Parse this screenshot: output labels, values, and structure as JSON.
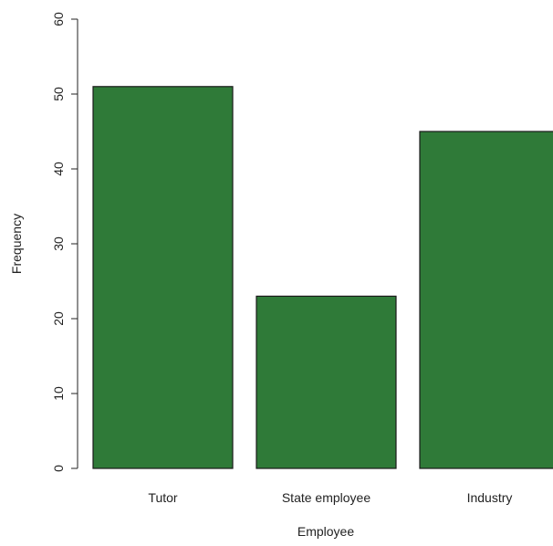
{
  "chart_data": {
    "type": "bar",
    "categories": [
      "Tutor",
      "State employee",
      "Industry"
    ],
    "values": [
      51,
      23,
      45
    ],
    "xlabel": "Employee",
    "ylabel": "Frequency",
    "ylim": [
      0,
      60
    ],
    "yticks": [
      0,
      10,
      20,
      30,
      40,
      50,
      60
    ],
    "bar_color": "#2f7a38",
    "bar_border_color": "#1a1a1a",
    "grid": false
  }
}
